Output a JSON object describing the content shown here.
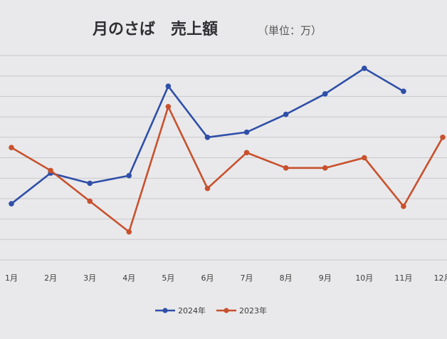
{
  "chart_data": {
    "type": "line",
    "title": "月のさば　売上額",
    "title_unit": "（単位：万）",
    "categories": [
      "1月",
      "2月",
      "3月",
      "4月",
      "5月",
      "6月",
      "7月",
      "8月",
      "9月",
      "10月",
      "11月",
      "12月"
    ],
    "series": [
      {
        "name": "2024年",
        "color": "#2f4fa8",
        "values": [
          2,
          14,
          10,
          13,
          48,
          28,
          30,
          37,
          45,
          55,
          46,
          null
        ]
      },
      {
        "name": "2023年",
        "color": "#c8512e",
        "values": [
          24,
          15,
          3,
          -9,
          40,
          8,
          22,
          16,
          16,
          20,
          1,
          28
        ]
      }
    ],
    "ylim": [
      -20,
      60
    ],
    "yticks_shown": false,
    "grid": "horizontal",
    "legend_position": "bottom-center"
  }
}
